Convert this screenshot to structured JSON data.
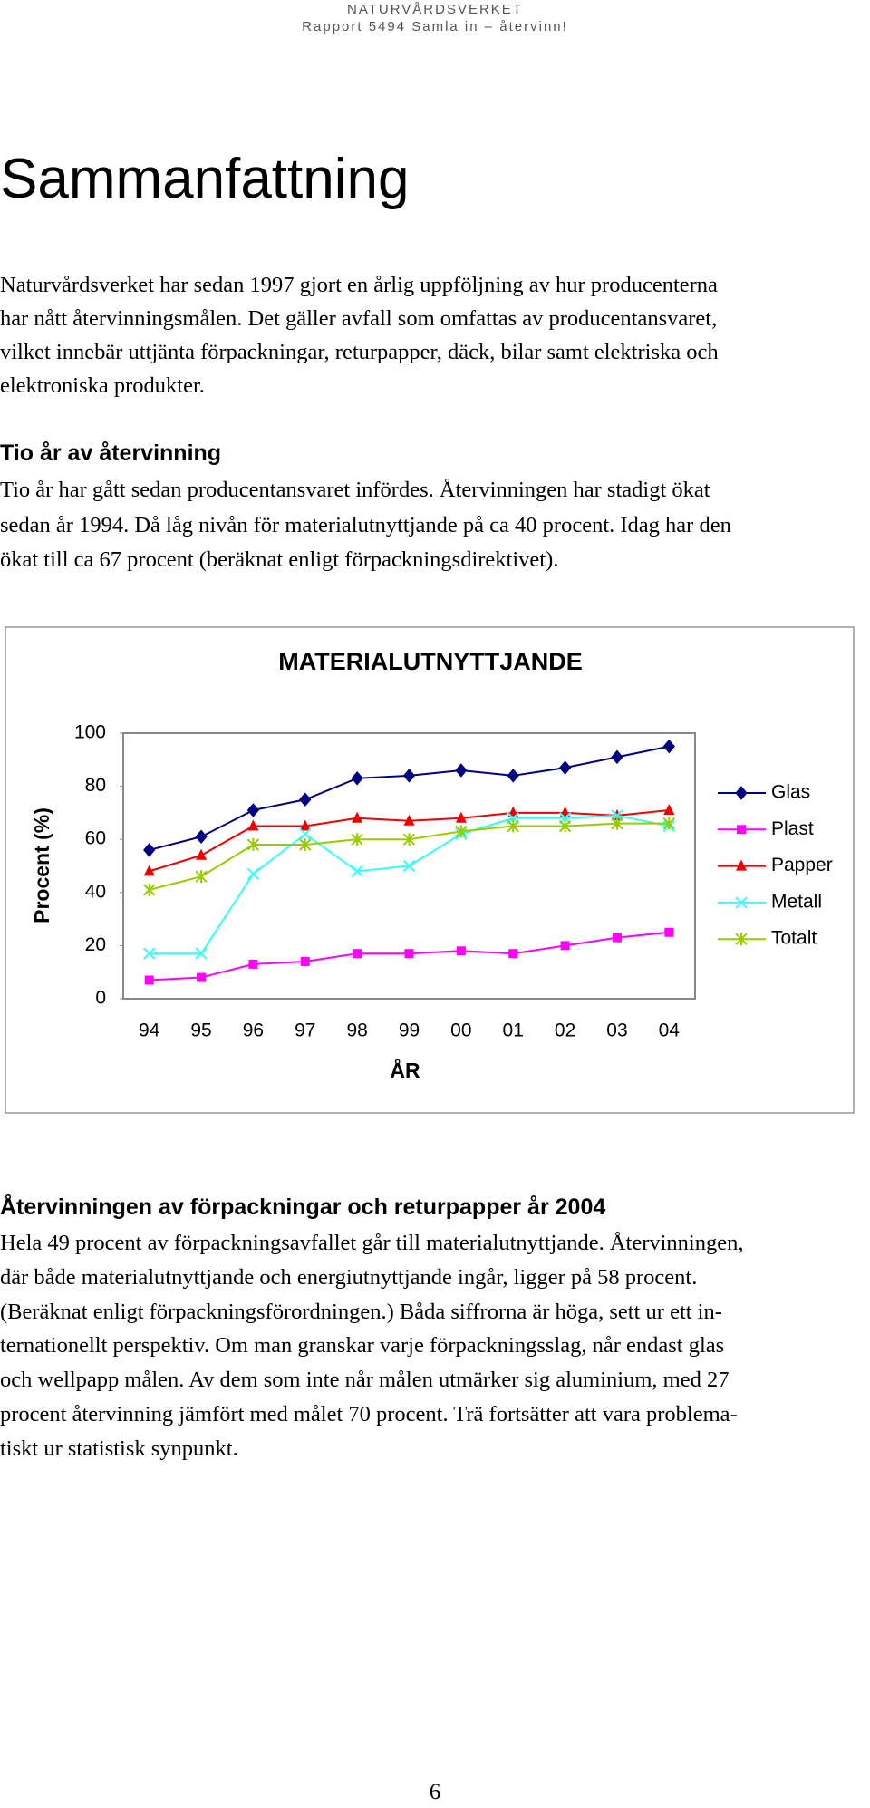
{
  "header": {
    "org": "NATURVÅRDSVERKET",
    "report": "Rapport 5494  Samla in – återvinn!"
  },
  "title": "Sammanfattning",
  "intro": [
    "Naturvårdsverket har sedan 1997 gjort en årlig uppföljning av hur producenterna",
    "har nått återvinningsmålen. Det gäller avfall som omfattas av producentansvaret,",
    "vilket innebär uttjänta förpackningar, returpapper, däck, bilar samt elektriska och",
    "elektroniska produkter."
  ],
  "section1": {
    "heading": "Tio år av återvinning",
    "lines": [
      "Tio år har gått sedan producentansvaret infördes. Återvinningen har stadigt ökat",
      "sedan år 1994. Då låg nivån för materialutnyttjande på ca 40 procent. Idag har den",
      "ökat till ca 67 procent (beräknat enligt förpackningsdirektivet)."
    ]
  },
  "chart_data": {
    "type": "line",
    "title": "MATERIALUTNYTTJANDE",
    "x_label": "ÅR",
    "y_label": "Procent (%)",
    "categories": [
      "94",
      "95",
      "96",
      "97",
      "98",
      "99",
      "00",
      "01",
      "02",
      "03",
      "04"
    ],
    "ylim": [
      0,
      100
    ],
    "yticks": [
      0,
      20,
      40,
      60,
      80,
      100
    ],
    "legend": "right",
    "series": [
      {
        "name": "Glas",
        "color": "#000080",
        "marker": "diamond",
        "values": [
          56,
          61,
          71,
          75,
          83,
          84,
          86,
          84,
          87,
          91,
          95
        ]
      },
      {
        "name": "Plast",
        "color": "#ff00ff",
        "marker": "square",
        "values": [
          7,
          8,
          13,
          14,
          17,
          17,
          18,
          17,
          20,
          23,
          25
        ]
      },
      {
        "name": "Papper",
        "color": "#ee0000",
        "marker": "triangle",
        "values": [
          48,
          54,
          65,
          65,
          68,
          67,
          68,
          70,
          70,
          69,
          71
        ]
      },
      {
        "name": "Metall",
        "color": "#33ffff",
        "marker": "x",
        "values": [
          17,
          17,
          47,
          62,
          48,
          50,
          62,
          68,
          68,
          69,
          65
        ]
      },
      {
        "name": "Totalt",
        "color": "#99cc00",
        "marker": "star",
        "values": [
          41,
          46,
          58,
          58,
          60,
          60,
          63,
          65,
          65,
          66,
          66
        ]
      }
    ]
  },
  "section2": {
    "heading": "Återvinningen av förpackningar och returpapper år 2004",
    "lines": [
      "Hela 49 procent av förpackningsavfallet går till materialutnyttjande. Återvinningen,",
      "där både materialutnyttjande och energiutnyttjande ingår, ligger på 58 procent.",
      "(Beräknat enligt förpackningsförordningen.) Båda siffrorna är höga, sett ur ett in-",
      "ternationellt perspektiv. Om man granskar varje förpackningsslag, når endast glas",
      "och wellpapp målen. Av dem som inte når målen utmärker sig aluminium, med 27",
      "procent återvinning jämfört med målet 70 procent. Trä fortsätter att vara problema-",
      "tiskt ur statistisk synpunkt."
    ]
  },
  "page_number": "6"
}
